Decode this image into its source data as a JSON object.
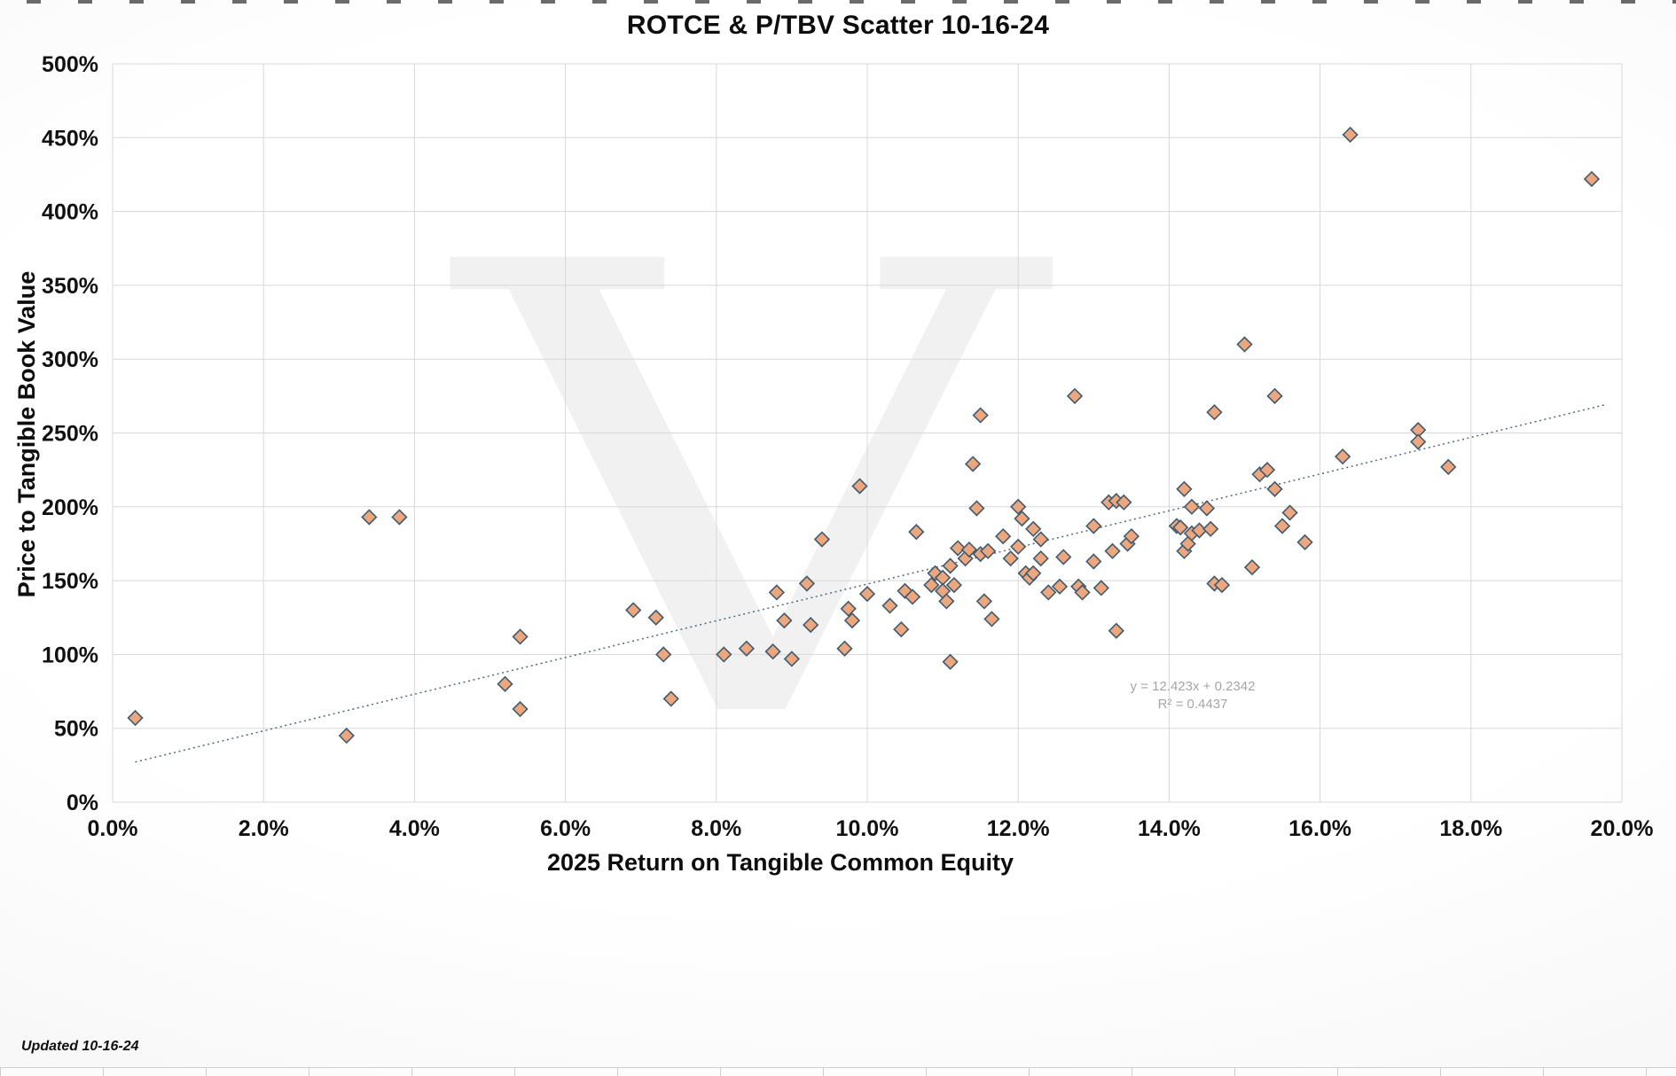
{
  "footer": {
    "updated": "Updated 10-16-24"
  },
  "chart_data": {
    "type": "scatter",
    "title": "ROTCE & P/TBV Scatter 10-16-24",
    "xlabel": "2025 Return on Tangible Common Equity",
    "ylabel": "Price to Tangible Book Value",
    "xlim": [
      0,
      20
    ],
    "ylim": [
      0,
      500
    ],
    "x_ticks": [
      "0.0%",
      "2.0%",
      "4.0%",
      "6.0%",
      "8.0%",
      "10.0%",
      "12.0%",
      "14.0%",
      "16.0%",
      "18.0%",
      "20.0%"
    ],
    "x_tick_values": [
      0,
      2,
      4,
      6,
      8,
      10,
      12,
      14,
      16,
      18,
      20
    ],
    "y_ticks": [
      "0%",
      "50%",
      "100%",
      "150%",
      "200%",
      "250%",
      "300%",
      "350%",
      "400%",
      "450%",
      "500%"
    ],
    "y_tick_values": [
      0,
      50,
      100,
      150,
      200,
      250,
      300,
      350,
      400,
      450,
      500
    ],
    "grid": true,
    "legend": "none",
    "watermark": "V",
    "marker": {
      "shape": "diamond",
      "fill": "#ECA77E",
      "stroke": "#405A6E"
    },
    "trendline": {
      "equation": "y = 12.423x + 0.2342",
      "r2_label": "R² = 0.4437",
      "slope": 12.423,
      "intercept_pct": 23.42,
      "x_start": 0.3,
      "x_end": 19.8,
      "color": "#53677d",
      "style": "dotted"
    },
    "points": [
      [
        0.3,
        57
      ],
      [
        3.1,
        45
      ],
      [
        3.4,
        193
      ],
      [
        3.8,
        193
      ],
      [
        5.2,
        80
      ],
      [
        5.4,
        112
      ],
      [
        5.4,
        63
      ],
      [
        6.9,
        130
      ],
      [
        7.2,
        125
      ],
      [
        7.3,
        100
      ],
      [
        7.4,
        70
      ],
      [
        8.1,
        100
      ],
      [
        8.4,
        104
      ],
      [
        8.75,
        102
      ],
      [
        8.8,
        142
      ],
      [
        8.9,
        123
      ],
      [
        9.0,
        97
      ],
      [
        9.2,
        148
      ],
      [
        9.25,
        120
      ],
      [
        9.4,
        178
      ],
      [
        9.7,
        104
      ],
      [
        9.75,
        131
      ],
      [
        9.8,
        123
      ],
      [
        9.9,
        214
      ],
      [
        10.0,
        141
      ],
      [
        10.3,
        133
      ],
      [
        10.45,
        117
      ],
      [
        10.5,
        143
      ],
      [
        10.6,
        139
      ],
      [
        10.65,
        183
      ],
      [
        10.85,
        147
      ],
      [
        10.9,
        155
      ],
      [
        11.0,
        152
      ],
      [
        11.0,
        143
      ],
      [
        11.05,
        136
      ],
      [
        11.1,
        160
      ],
      [
        11.1,
        95
      ],
      [
        11.15,
        147
      ],
      [
        11.2,
        172
      ],
      [
        11.3,
        165
      ],
      [
        11.35,
        171
      ],
      [
        11.4,
        229
      ],
      [
        11.45,
        199
      ],
      [
        11.5,
        262
      ],
      [
        11.5,
        168
      ],
      [
        11.55,
        136
      ],
      [
        11.6,
        170
      ],
      [
        11.65,
        124
      ],
      [
        11.8,
        180
      ],
      [
        11.9,
        165
      ],
      [
        12.0,
        200
      ],
      [
        12.0,
        173
      ],
      [
        12.05,
        192
      ],
      [
        12.1,
        155
      ],
      [
        12.15,
        152
      ],
      [
        12.2,
        185
      ],
      [
        12.2,
        155
      ],
      [
        12.3,
        178
      ],
      [
        12.3,
        165
      ],
      [
        12.4,
        142
      ],
      [
        12.55,
        146
      ],
      [
        12.6,
        166
      ],
      [
        12.75,
        275
      ],
      [
        12.8,
        146
      ],
      [
        12.85,
        142
      ],
      [
        13.0,
        187
      ],
      [
        13.0,
        163
      ],
      [
        13.1,
        145
      ],
      [
        13.2,
        203
      ],
      [
        13.25,
        170
      ],
      [
        13.3,
        204
      ],
      [
        13.3,
        116
      ],
      [
        13.4,
        203
      ],
      [
        13.45,
        175
      ],
      [
        13.5,
        180
      ],
      [
        14.1,
        187
      ],
      [
        14.15,
        186
      ],
      [
        14.2,
        212
      ],
      [
        14.2,
        170
      ],
      [
        14.25,
        175
      ],
      [
        14.3,
        200
      ],
      [
        14.3,
        182
      ],
      [
        14.4,
        184
      ],
      [
        14.5,
        199
      ],
      [
        14.55,
        185
      ],
      [
        14.6,
        264
      ],
      [
        14.6,
        148
      ],
      [
        14.7,
        147
      ],
      [
        15.0,
        310
      ],
      [
        15.1,
        159
      ],
      [
        15.2,
        222
      ],
      [
        15.3,
        225
      ],
      [
        15.4,
        275
      ],
      [
        15.4,
        212
      ],
      [
        15.5,
        187
      ],
      [
        15.6,
        196
      ],
      [
        15.8,
        176
      ],
      [
        16.3,
        234
      ],
      [
        16.4,
        452
      ],
      [
        17.3,
        252
      ],
      [
        17.3,
        244
      ],
      [
        17.7,
        227
      ],
      [
        19.6,
        422
      ]
    ]
  }
}
